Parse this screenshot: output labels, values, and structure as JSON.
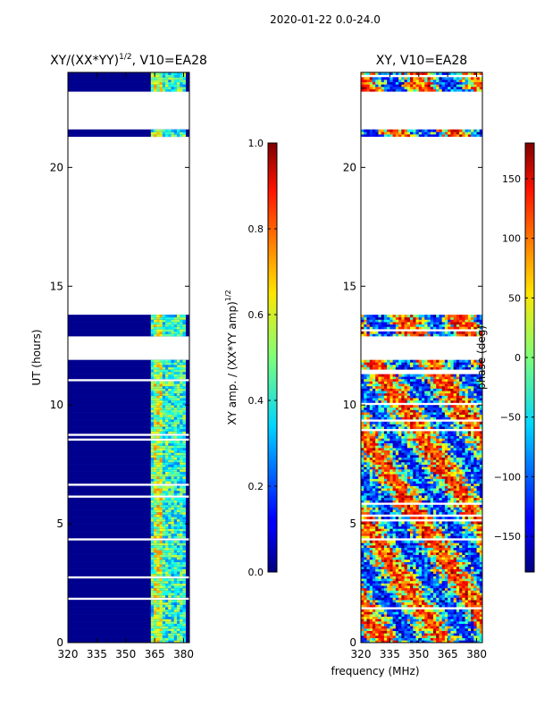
{
  "suptitle": "2020-01-22 0.0-24.0",
  "chart_data": [
    {
      "type": "heatmap",
      "title": "XY/(XX*YY)^1/2, V10=EA28",
      "title_main": "XY/(XX*YY)",
      "title_sup": "1/2",
      "title_tail": ", V10=EA28",
      "xlabel": "",
      "ylabel": "UT (hours)",
      "xlim": [
        320,
        383
      ],
      "ylim": [
        0,
        24
      ],
      "xticks": [
        320,
        335,
        350,
        365,
        380
      ],
      "yticks": [
        0,
        5,
        10,
        15,
        20
      ],
      "xtick_labels": [
        "320",
        "335",
        "350",
        "365",
        "380"
      ],
      "ytick_labels": [
        "0",
        "5",
        "10",
        "15",
        "20"
      ],
      "colorbar": {
        "label": "XY amp. / (XX*YY amp)^1/2",
        "label_main": "XY amp. / (XX*YY amp)",
        "label_sup": "1/2",
        "range": [
          0.0,
          1.0
        ],
        "ticks": [
          0.0,
          0.2,
          0.4,
          0.6,
          0.8,
          1.0
        ],
        "tick_labels": [
          "0.0",
          "0.2",
          "0.4",
          "0.6",
          "0.8",
          "1.0"
        ]
      }
    },
    {
      "type": "heatmap",
      "title": "XY, V10=EA28",
      "xlabel": "frequency (MHz)",
      "ylabel": "",
      "xlim": [
        320,
        383
      ],
      "ylim": [
        0,
        24
      ],
      "xticks": [
        320,
        335,
        350,
        365,
        380
      ],
      "yticks": [
        0,
        5,
        10,
        15,
        20
      ],
      "xtick_labels": [
        "320",
        "335",
        "350",
        "365",
        "380"
      ],
      "ytick_labels": [
        "0",
        "5",
        "10",
        "15",
        "20"
      ],
      "colorbar": {
        "label": "phase (deg)",
        "range": [
          -180,
          180
        ],
        "ticks": [
          -150,
          -100,
          -50,
          0,
          50,
          100,
          150
        ],
        "tick_labels": [
          "−150",
          "−100",
          "−50",
          "0",
          "50",
          "100",
          "150"
        ]
      }
    }
  ],
  "data_segments_hours": [
    [
      0.0,
      13.7
    ],
    [
      21.3,
      21.55
    ],
    [
      23.2,
      24.0
    ]
  ],
  "data_gaps_hours": [
    [
      11.85,
      12.8
    ]
  ],
  "bright_channel_band_mhz": [
    363,
    381
  ]
}
